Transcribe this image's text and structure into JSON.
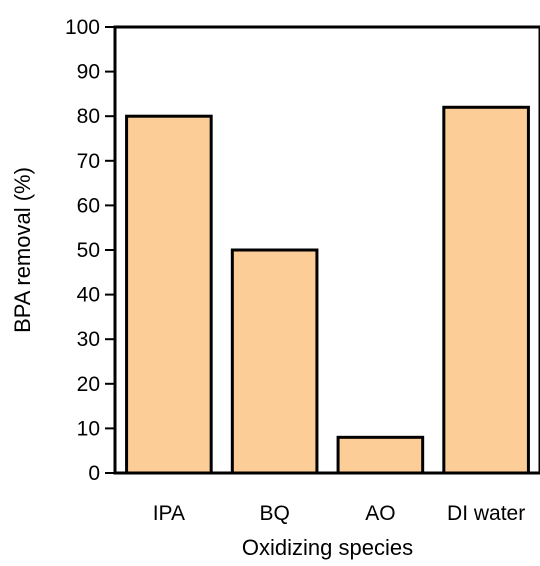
{
  "chart_data": {
    "type": "bar",
    "categories": [
      "IPA",
      "BQ",
      "AO",
      "DI water"
    ],
    "values": [
      80,
      50,
      8,
      82
    ],
    "title": "",
    "xlabel": "Oxidizing species",
    "ylabel": "BPA removal (%)",
    "ylim": [
      0,
      100
    ],
    "yticks": [
      "0",
      "10",
      "20",
      "30",
      "40",
      "50",
      "60",
      "70",
      "80",
      "90",
      "100"
    ],
    "grid": false,
    "bar_color": "#FDCD97",
    "edge_color": "#000000"
  }
}
